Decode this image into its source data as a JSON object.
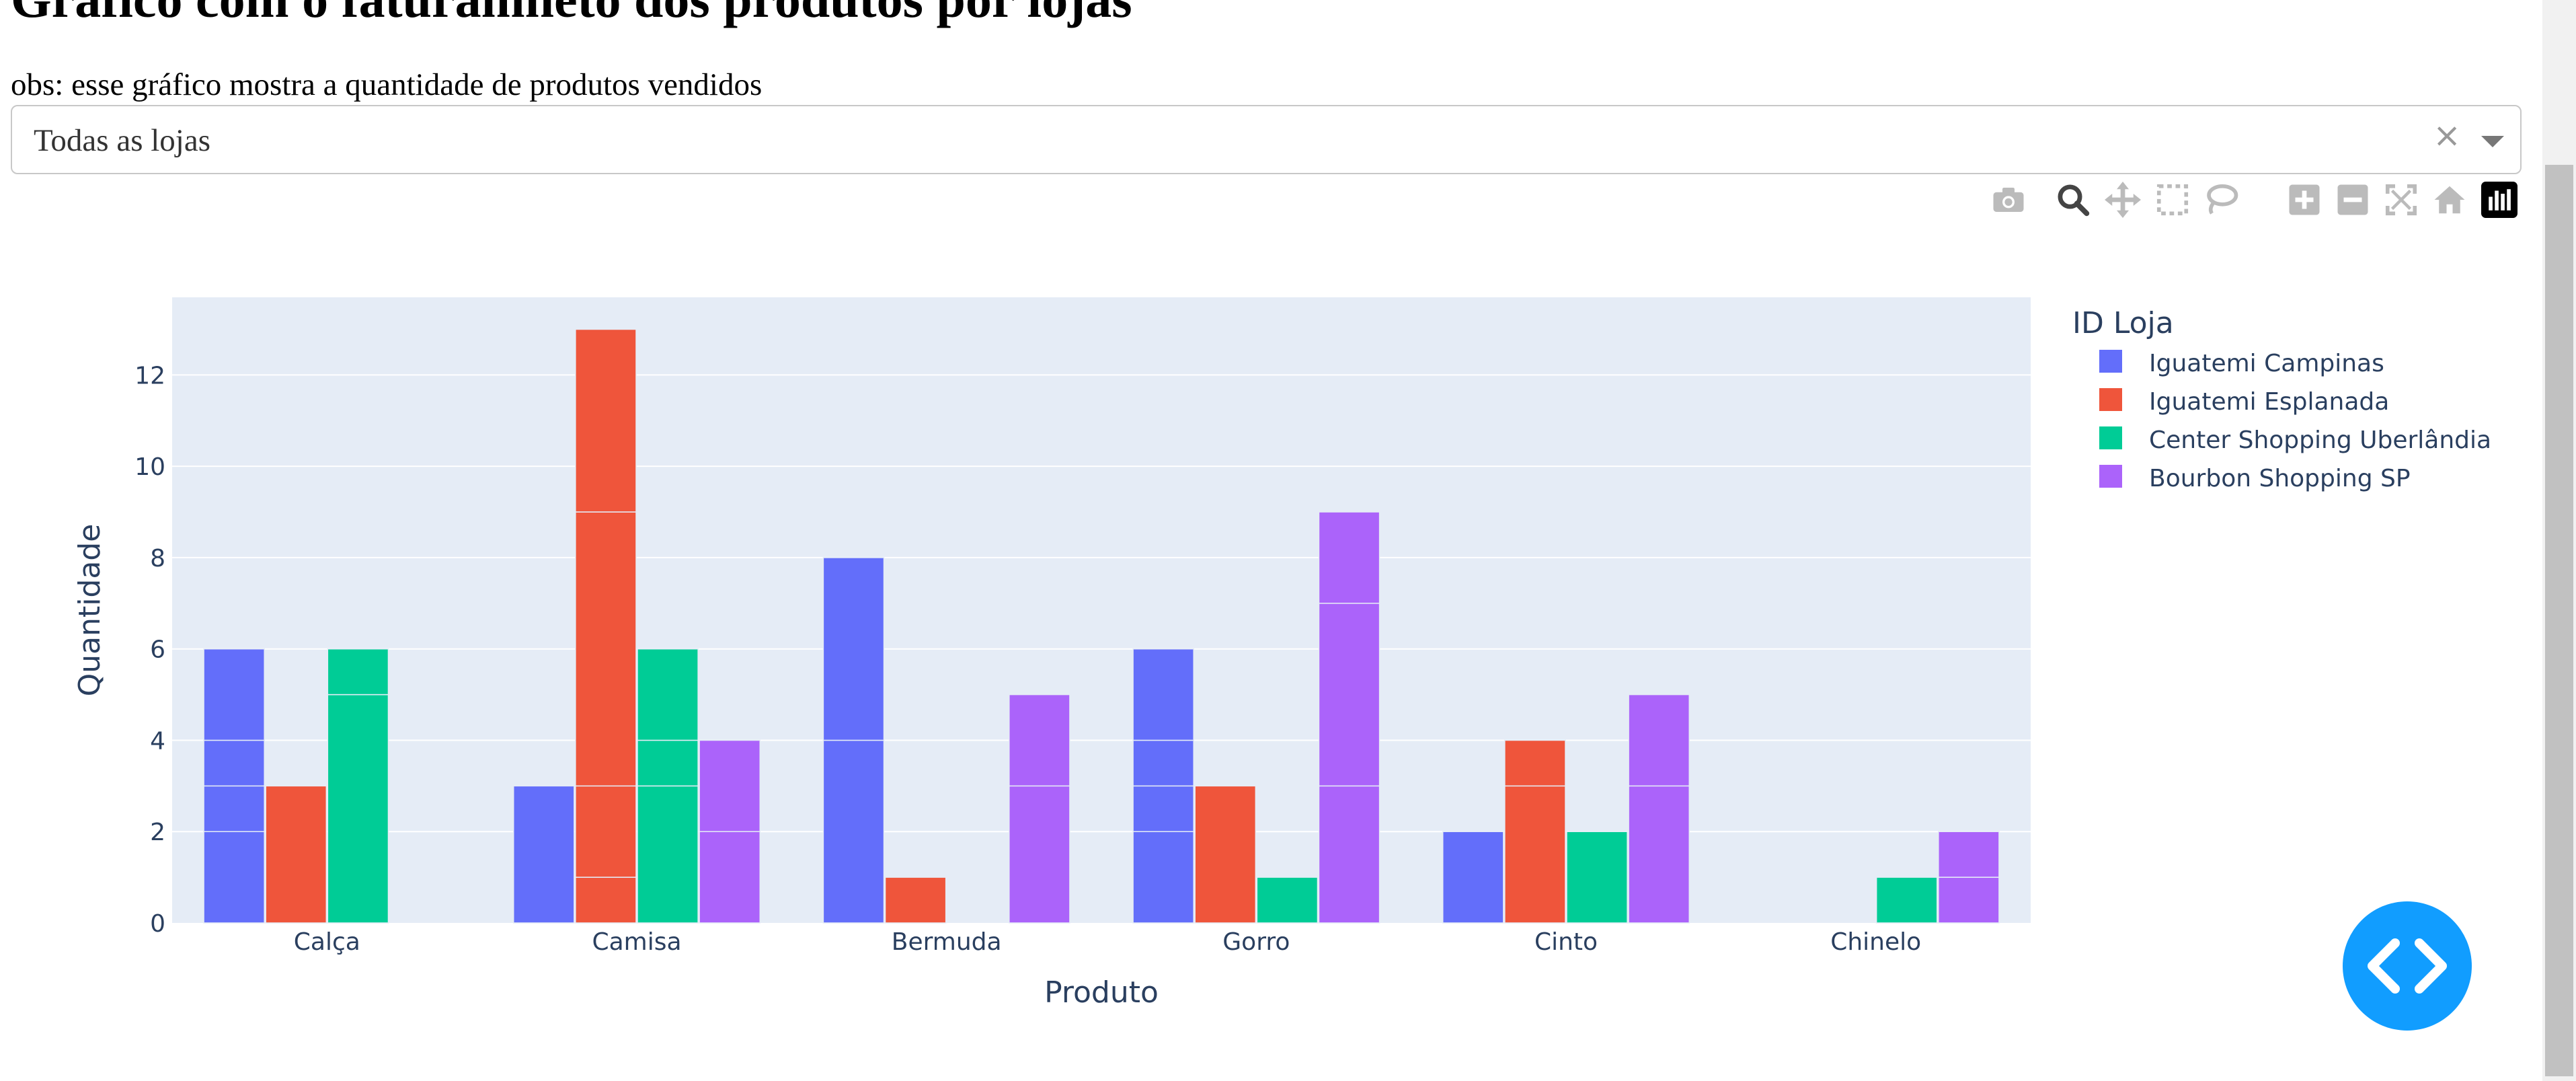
{
  "page": {
    "title": "Gráfico com o faturamneto dos produtos por lojas",
    "note": "obs: esse gráfico mostra a quantidade de produtos vendidos"
  },
  "dropdown": {
    "selected": "Todas as lojas",
    "clear_symbol": "×"
  },
  "modebar": {
    "icons": [
      "camera-icon",
      "zoom-icon",
      "pan-icon",
      "box-select-icon",
      "lasso-select-icon",
      "zoom-in-icon",
      "zoom-out-icon",
      "autoscale-icon",
      "reset-axes-icon",
      "plotly-logo-icon"
    ],
    "active": "zoom-icon"
  },
  "chart_data": {
    "type": "bar",
    "barmode": "group",
    "xlabel": "Produto",
    "ylabel": "Quantidade",
    "legend_title": "ID Loja",
    "legend_position": "right",
    "grid": true,
    "ylim": [
      0,
      13.7
    ],
    "yticks": [
      0,
      2,
      4,
      6,
      8,
      10,
      12
    ],
    "categories": [
      "Calça",
      "Camisa",
      "Bermuda",
      "Gorro",
      "Cinto",
      "Chinelo"
    ],
    "series": [
      {
        "name": "Iguatemi Campinas",
        "color": "#636efa",
        "values": [
          6,
          3,
          8,
          6,
          2,
          0
        ],
        "segments": [
          [
            2,
            1,
            1,
            2
          ],
          [
            3
          ],
          [
            4,
            4
          ],
          [
            2,
            1,
            1,
            2
          ],
          [
            2
          ],
          []
        ]
      },
      {
        "name": "Iguatemi Esplanada",
        "color": "#ef553b",
        "values": [
          3,
          13,
          1,
          3,
          4,
          0
        ],
        "segments": [
          [
            3
          ],
          [
            1,
            2,
            6,
            4
          ],
          [
            1
          ],
          [
            3
          ],
          [
            3,
            1
          ],
          []
        ]
      },
      {
        "name": "Center Shopping Uberlândia",
        "color": "#00cc96",
        "values": [
          6,
          6,
          0,
          1,
          2,
          1
        ],
        "segments": [
          [
            5,
            1
          ],
          [
            3,
            1,
            2
          ],
          [],
          [
            1
          ],
          [
            2
          ],
          [
            1
          ]
        ]
      },
      {
        "name": "Bourbon Shopping SP",
        "color": "#ab63fa",
        "values": [
          0,
          4,
          5,
          9,
          5,
          2
        ],
        "segments": [
          [],
          [
            2,
            2
          ],
          [
            3,
            2
          ],
          [
            3,
            4,
            2
          ],
          [
            3,
            2
          ],
          [
            1,
            1
          ]
        ]
      }
    ]
  }
}
